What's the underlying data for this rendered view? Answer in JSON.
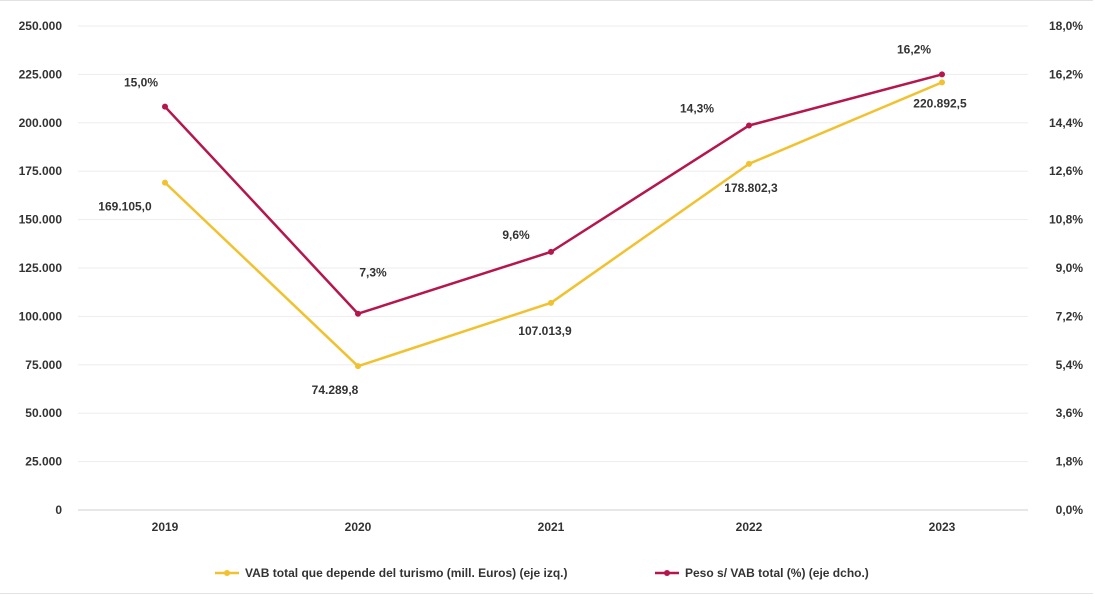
{
  "chart_data": {
    "type": "line",
    "categories": [
      "2019",
      "2020",
      "2021",
      "2022",
      "2023"
    ],
    "series": [
      {
        "name": "VAB total que depende del turismo (mill. Euros) (eje izq.)",
        "axis": "left",
        "color": "#f2c12e",
        "values": [
          169105.0,
          74289.8,
          107013.9,
          178802.3,
          220892.5
        ],
        "labels": [
          "169.105,0",
          "74.289,8",
          "107.013,9",
          "178.802,3",
          "220.892,5"
        ]
      },
      {
        "name": "Peso s/ VAB total (%) (eje dcho.)",
        "axis": "right",
        "color": "#b5164b",
        "values": [
          15.0,
          7.3,
          9.6,
          14.3,
          16.2
        ],
        "labels": [
          "15,0%",
          "7,3%",
          "9,6%",
          "14,3%",
          "16,2%"
        ]
      }
    ],
    "y_left": {
      "ylim": [
        0,
        250000
      ],
      "ticks": [
        "0",
        "25.000",
        "50.000",
        "75.000",
        "100.000",
        "125.000",
        "150.000",
        "175.000",
        "200.000",
        "225.000",
        "250.000"
      ]
    },
    "y_right": {
      "ylim": [
        0,
        18
      ],
      "ticks": [
        "0,0%",
        "1,8%",
        "3,6%",
        "5,4%",
        "7,2%",
        "9,0%",
        "10,8%",
        "12,6%",
        "14,4%",
        "16,2%",
        "18,0%"
      ]
    },
    "grid": true,
    "legend_position": "bottom-center"
  }
}
